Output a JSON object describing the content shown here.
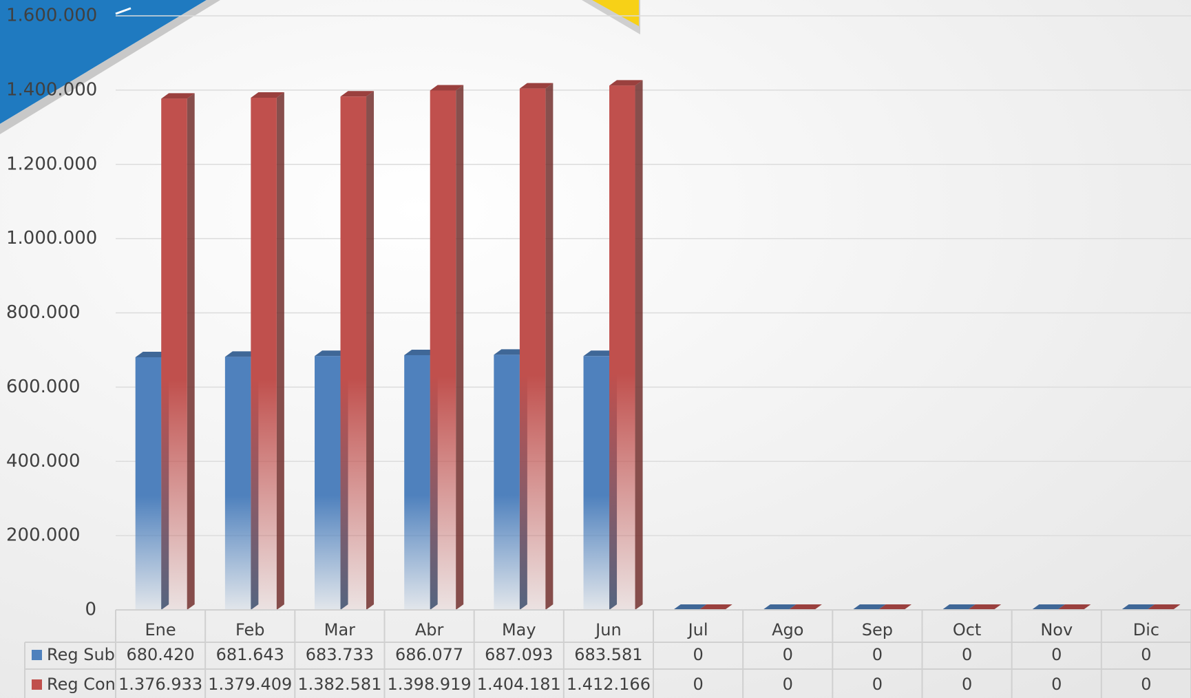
{
  "chart_data": {
    "type": "bar3d",
    "categories": [
      "Ene",
      "Feb",
      "Mar",
      "Abr",
      "May",
      "Jun",
      "Jul",
      "Ago",
      "Sep",
      "Oct",
      "Nov",
      "Dic"
    ],
    "series": [
      {
        "name": "Reg Sub",
        "color": "#4f81bd",
        "values": [
          680420,
          681643,
          683733,
          686077,
          687093,
          683581,
          0,
          0,
          0,
          0,
          0,
          0
        ],
        "value_labels": [
          "680.420",
          "681.643",
          "683.733",
          "686.077",
          "687.093",
          "683.581",
          "0",
          "0",
          "0",
          "0",
          "0",
          "0"
        ]
      },
      {
        "name": "Reg Con",
        "color": "#c0504d",
        "values": [
          1376933,
          1379409,
          1382581,
          1398919,
          1404181,
          1412166,
          0,
          0,
          0,
          0,
          0,
          0
        ],
        "value_labels": [
          "1.376.933",
          "1.379.409",
          "1.382.581",
          "1.398.919",
          "1.404.181",
          "1.412.166",
          "0",
          "0",
          "0",
          "0",
          "0",
          "0"
        ]
      }
    ],
    "ylim": [
      0,
      1600000
    ],
    "yticks": [
      0,
      {
        "value": 200000,
        "label": "200.000"
      },
      {
        "value": 400000,
        "label": "400.000"
      },
      {
        "value": 600000,
        "label": "600.000"
      },
      {
        "value": 800000,
        "label": "800.000"
      },
      {
        "value": 1000000,
        "label": "1.000.000"
      },
      {
        "value": 1200000,
        "label": "1.200.000"
      },
      {
        "value": 1400000,
        "label": "1.400.000"
      },
      {
        "value": 1600000,
        "label": "1.600.000"
      }
    ],
    "grid": true,
    "data_table": true
  }
}
